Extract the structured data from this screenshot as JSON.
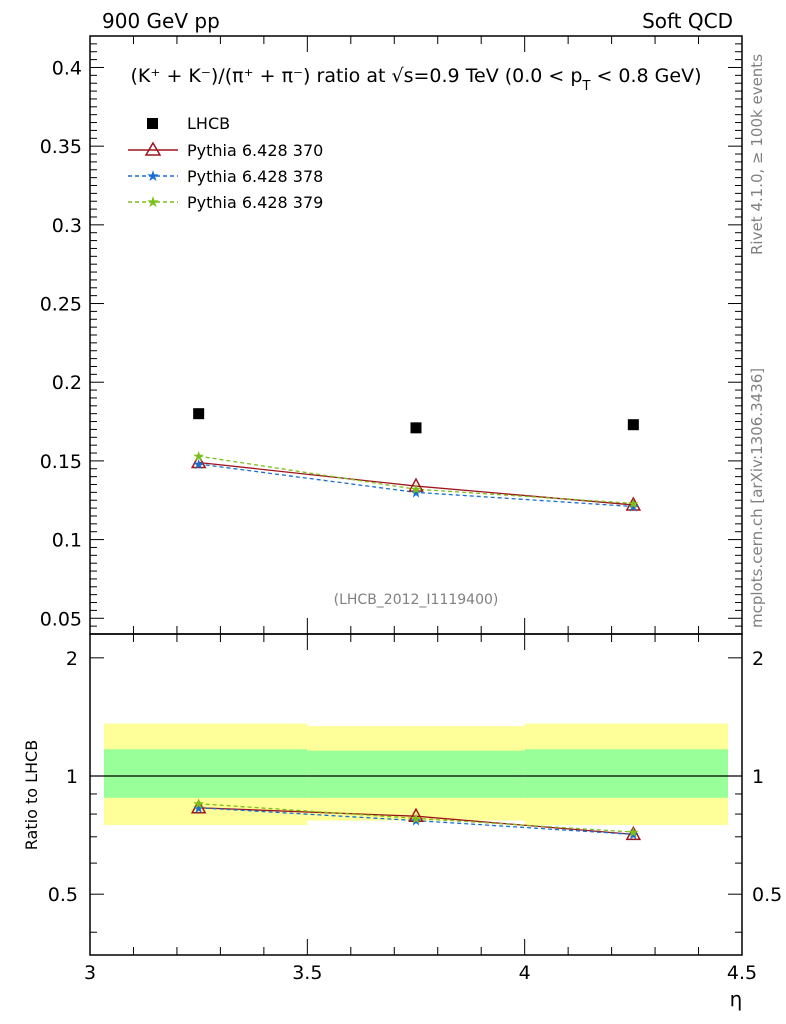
{
  "header": {
    "left": "900 GeV pp",
    "right": "Soft QCD"
  },
  "side_text": {
    "rivet": "Rivet 4.1.0, ≥ 100k events",
    "mcplots": "mcplots.cern.ch [arXiv:1306.3436]"
  },
  "colors": {
    "lhcb": "#000000",
    "p370": "#a0141e",
    "p378": "#1a6fd0",
    "p379": "#7cbf1a",
    "band_inner": "#99ff99",
    "band_outer": "#ffff99"
  },
  "chart_data": [
    {
      "type": "scatter",
      "title": "(K⁺ + K⁻)/(π⁺ + π⁻) ratio at √s=0.9 TeV (0.0 < p_T < 0.8 GeV)",
      "title_parts": {
        "main": "(K⁺ + K⁻)/(π⁺ + π⁻) ratio at √s=0.9 TeV (0.0 < p",
        "sub": "T",
        "tail": " < 0.8 GeV)"
      },
      "analysis_id": "(LHCB_2012_I1119400)",
      "xlabel": "",
      "ylabel": "",
      "xlim": [
        3.0,
        4.5
      ],
      "ylim": [
        0.04,
        0.42
      ],
      "yticks": [
        0.05,
        0.1,
        0.15,
        0.2,
        0.25,
        0.3,
        0.35,
        0.4
      ],
      "ytick_labels": [
        "0.05",
        "0.1",
        "0.15",
        "0.2",
        "0.25",
        "0.3",
        "0.35",
        "0.4"
      ],
      "x": [
        3.25,
        3.75,
        4.25
      ],
      "xbins": [
        [
          3.0,
          3.5
        ],
        [
          3.5,
          4.0
        ],
        [
          4.0,
          4.5
        ]
      ],
      "series": [
        {
          "name": "LHCB",
          "style": "data",
          "values": [
            0.18,
            0.171,
            0.173
          ]
        },
        {
          "name": "Pythia 6.428 370",
          "style": "triangle",
          "values": [
            0.149,
            0.134,
            0.122
          ]
        },
        {
          "name": "Pythia 6.428 378",
          "style": "dashed-star",
          "values": [
            0.148,
            0.13,
            0.121
          ]
        },
        {
          "name": "Pythia 6.428 379",
          "style": "dashed-star",
          "values": [
            0.153,
            0.132,
            0.123
          ]
        }
      ],
      "legend_position": "top-left"
    },
    {
      "type": "line",
      "ylabel": "Ratio to LHCB",
      "xlabel": "η",
      "xlim": [
        3.0,
        4.5
      ],
      "ylim": [
        0.35,
        2.3
      ],
      "yscale": "log",
      "yticks": [
        0.5,
        1,
        2
      ],
      "ytick_labels": [
        "0.5",
        "1",
        "2"
      ],
      "xticks": [
        3.0,
        3.5,
        4.0,
        4.5
      ],
      "xtick_labels": [
        "3",
        "3.5",
        "4",
        "4.5"
      ],
      "x": [
        3.25,
        3.75,
        4.25
      ],
      "bands": {
        "inner": [
          [
            0.88,
            1.17
          ],
          [
            0.88,
            1.16
          ],
          [
            0.88,
            1.17
          ]
        ],
        "outer": [
          [
            0.75,
            1.36
          ],
          [
            0.77,
            1.34
          ],
          [
            0.75,
            1.36
          ]
        ]
      },
      "series": [
        {
          "name": "Pythia 6.428 370",
          "values": [
            0.83,
            0.79,
            0.71
          ]
        },
        {
          "name": "Pythia 6.428 378",
          "values": [
            0.83,
            0.77,
            0.71
          ]
        },
        {
          "name": "Pythia 6.428 379",
          "values": [
            0.85,
            0.78,
            0.72
          ]
        }
      ]
    }
  ]
}
